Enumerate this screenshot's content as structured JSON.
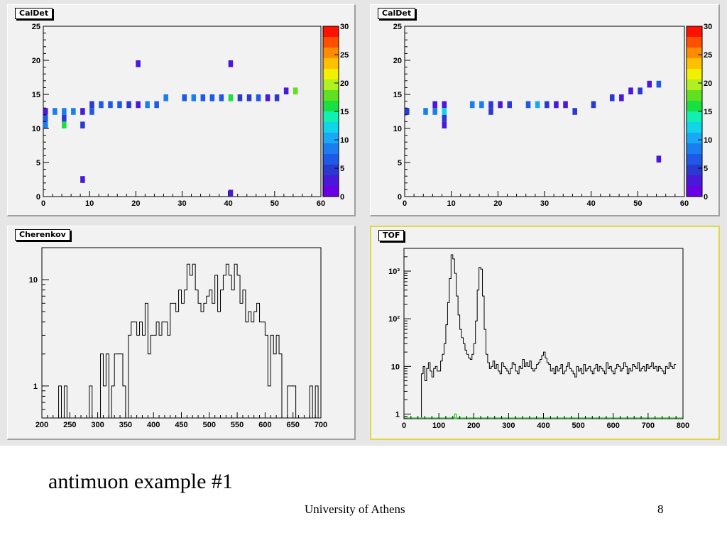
{
  "slide": {
    "caption": "antimuon example #1",
    "footer": "University of Athens",
    "page_number": "8"
  },
  "palette": [
    "#6a00e6",
    "#4a18d8",
    "#2a3ad0",
    "#1e5ae6",
    "#1a7ef0",
    "#18a8f5",
    "#10d4e8",
    "#10f0b0",
    "#18e040",
    "#60e020",
    "#b0f020",
    "#f0f000",
    "#ffc000",
    "#ff8c00",
    "#ff5000",
    "#ff1000"
  ],
  "chart_data": [
    {
      "id": "caldet-left",
      "type": "heatmap",
      "title": "CalDet",
      "xlim": [
        0,
        60
      ],
      "ylim": [
        0,
        25
      ],
      "x_ticks": [
        0,
        10,
        20,
        30,
        40,
        50,
        60
      ],
      "y_ticks": [
        0,
        5,
        10,
        15,
        20,
        25
      ],
      "z_ticks": [
        0,
        5,
        10,
        15,
        20,
        25,
        30
      ],
      "zlim": [
        0,
        30
      ],
      "cells": [
        [
          0.5,
          10.5,
          8
        ],
        [
          0.5,
          11.5,
          6
        ],
        [
          0.5,
          12.5,
          3
        ],
        [
          2.5,
          12.5,
          8
        ],
        [
          4.5,
          12.5,
          8
        ],
        [
          4.5,
          11.5,
          4
        ],
        [
          4.5,
          10.5,
          15
        ],
        [
          6.5,
          12.5,
          8
        ],
        [
          8.5,
          12.5,
          2
        ],
        [
          8.5,
          10.5,
          4
        ],
        [
          8.5,
          2.5,
          2
        ],
        [
          10.5,
          12.5,
          6
        ],
        [
          10.5,
          13.5,
          5
        ],
        [
          12.5,
          13.5,
          6
        ],
        [
          14.5,
          13.5,
          6
        ],
        [
          16.5,
          13.5,
          6
        ],
        [
          18.5,
          13.5,
          5
        ],
        [
          20.5,
          13.5,
          3
        ],
        [
          20.5,
          19.5,
          3
        ],
        [
          22.5,
          13.5,
          9
        ],
        [
          24.5,
          13.5,
          6
        ],
        [
          26.5,
          14.5,
          8
        ],
        [
          30.5,
          14.5,
          7
        ],
        [
          32.5,
          14.5,
          8
        ],
        [
          34.5,
          14.5,
          6
        ],
        [
          36.5,
          14.5,
          6
        ],
        [
          38.5,
          14.5,
          6
        ],
        [
          40.5,
          14.5,
          16
        ],
        [
          40.5,
          19.5,
          3
        ],
        [
          40.5,
          0.5,
          3
        ],
        [
          42.5,
          14.5,
          4
        ],
        [
          44.5,
          14.5,
          5
        ],
        [
          46.5,
          14.5,
          6
        ],
        [
          48.5,
          14.5,
          2
        ],
        [
          50.5,
          14.5,
          4
        ],
        [
          52.5,
          15.5,
          2
        ],
        [
          54.5,
          15.5,
          17
        ]
      ]
    },
    {
      "id": "caldet-right",
      "type": "heatmap",
      "title": "CalDet",
      "xlim": [
        0,
        60
      ],
      "ylim": [
        0,
        25
      ],
      "x_ticks": [
        0,
        10,
        20,
        30,
        40,
        50,
        60
      ],
      "y_ticks": [
        0,
        5,
        10,
        15,
        20,
        25
      ],
      "z_ticks": [
        0,
        5,
        10,
        15,
        20,
        25,
        30
      ],
      "zlim": [
        0,
        30
      ],
      "cells": [
        [
          0.5,
          12.5,
          4
        ],
        [
          4.5,
          12.5,
          8
        ],
        [
          6.5,
          12.5,
          8
        ],
        [
          6.5,
          13.5,
          3
        ],
        [
          8.5,
          13.5,
          3
        ],
        [
          8.5,
          12.5,
          12
        ],
        [
          8.5,
          11.5,
          4
        ],
        [
          8.5,
          10.5,
          2
        ],
        [
          14.5,
          13.5,
          9
        ],
        [
          16.5,
          13.5,
          8
        ],
        [
          18.5,
          13.5,
          4
        ],
        [
          18.5,
          12.5,
          4
        ],
        [
          20.5,
          13.5,
          3
        ],
        [
          22.5,
          13.5,
          5
        ],
        [
          26.5,
          13.5,
          7
        ],
        [
          28.5,
          13.5,
          10
        ],
        [
          30.5,
          13.5,
          4
        ],
        [
          32.5,
          13.5,
          3
        ],
        [
          34.5,
          13.5,
          3
        ],
        [
          36.5,
          12.5,
          5
        ],
        [
          40.5,
          13.5,
          4
        ],
        [
          44.5,
          14.5,
          5
        ],
        [
          46.5,
          14.5,
          3
        ],
        [
          48.5,
          15.5,
          3
        ],
        [
          50.5,
          15.5,
          4
        ],
        [
          52.5,
          16.5,
          3
        ],
        [
          54.5,
          16.5,
          7
        ],
        [
          54.5,
          5.5,
          2
        ]
      ]
    },
    {
      "id": "cherenkov",
      "type": "histogram",
      "title": "Cherenkov",
      "xlim": [
        200,
        700
      ],
      "ylim": [
        0.5,
        20
      ],
      "yscale": "log",
      "x_ticks": [
        200,
        250,
        300,
        350,
        400,
        450,
        500,
        550,
        600,
        650,
        700
      ],
      "y_ticks": [
        1,
        10
      ],
      "x_start": 200,
      "bin_width": 5,
      "values": [
        0,
        0,
        0,
        0,
        0,
        0,
        1,
        0,
        1,
        0,
        0,
        0,
        0,
        0,
        0,
        0,
        0,
        1,
        0,
        0,
        0,
        2,
        1,
        2,
        0,
        1,
        2,
        2,
        2,
        1,
        0,
        3,
        4,
        4,
        3,
        4,
        3,
        6,
        2,
        3,
        3,
        4,
        3,
        4,
        4,
        3,
        6,
        6,
        5,
        8,
        6,
        8,
        14,
        11,
        14,
        8,
        6,
        5,
        6,
        7,
        8,
        6,
        11,
        5,
        8,
        11,
        14,
        11,
        8,
        14,
        11,
        6,
        8,
        4,
        5,
        4,
        5,
        6,
        4,
        4,
        3,
        1,
        3,
        2,
        3,
        2,
        0,
        0,
        1,
        1,
        1,
        0,
        0,
        0,
        0,
        0,
        1,
        0,
        1,
        0
      ],
      "green_x": 647.5,
      "green_value": 0
    },
    {
      "id": "tof",
      "type": "histogram",
      "title": "TOF",
      "xlim": [
        0,
        800
      ],
      "ylim": [
        0.8,
        3000
      ],
      "yscale": "log",
      "x_ticks": [
        0,
        100,
        200,
        300,
        400,
        500,
        600,
        700,
        800
      ],
      "y_ticks": [
        1,
        10,
        100,
        1000
      ],
      "y_tick_labels": [
        "1",
        "10",
        "10²",
        "10³"
      ],
      "x_start": 50,
      "bin_width": 5,
      "values": [
        7,
        10,
        5,
        9,
        12,
        8,
        6,
        9,
        10,
        8,
        8,
        13,
        18,
        30,
        75,
        220,
        700,
        2200,
        1800,
        900,
        300,
        120,
        60,
        40,
        30,
        22,
        18,
        15,
        14,
        18,
        30,
        90,
        400,
        1200,
        1100,
        300,
        60,
        18,
        12,
        9,
        10,
        13,
        9,
        11,
        8,
        7,
        12,
        10,
        9,
        8,
        7,
        9,
        12,
        11,
        8,
        7,
        10,
        9,
        14,
        10,
        12,
        10,
        13,
        9,
        8,
        9,
        11,
        12,
        14,
        17,
        20,
        15,
        12,
        11,
        8,
        9,
        7,
        10,
        8,
        9,
        11,
        7,
        8,
        10,
        12,
        9,
        8,
        7,
        6,
        10,
        8,
        9,
        7,
        11,
        8,
        9,
        10,
        8,
        7,
        9,
        11,
        8,
        10,
        9,
        8,
        7,
        12,
        9,
        10,
        8,
        7,
        9,
        11,
        10,
        8,
        9,
        12,
        10,
        7,
        9,
        8,
        11,
        10,
        9,
        12,
        8,
        9,
        10,
        8,
        11,
        9,
        10,
        12,
        9,
        10,
        8,
        10,
        9,
        8,
        7,
        10,
        9,
        12,
        10,
        9,
        11
      ],
      "green_bins": [
        [
          145,
          150,
          1
        ]
      ]
    }
  ],
  "icons": {}
}
